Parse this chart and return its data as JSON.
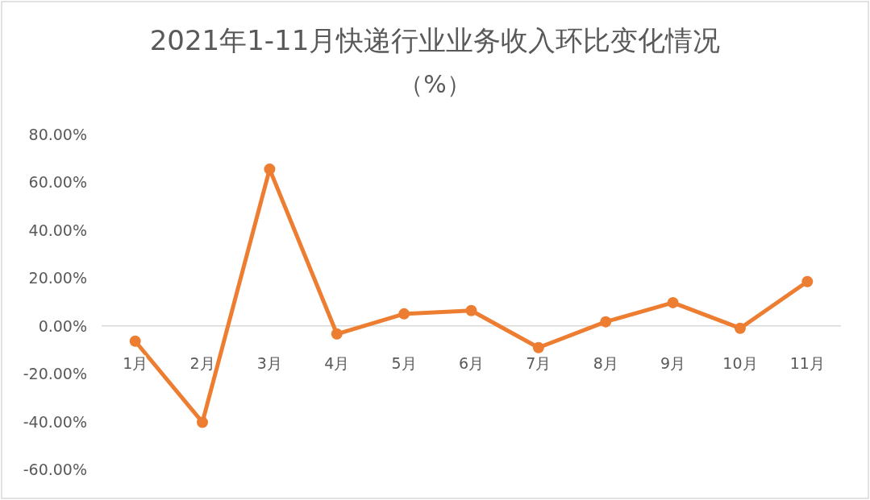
{
  "chart_data": {
    "type": "line",
    "title": "2021年1-11月快递行业业务收入环比变化情况",
    "subtitle": "（%）",
    "categories": [
      "1月",
      "2月",
      "3月",
      "4月",
      "5月",
      "6月",
      "7月",
      "8月",
      "9月",
      "10月",
      "11月"
    ],
    "series": [
      {
        "color": "#ed7d31",
        "values": [
          -6.4,
          -40.3,
          65.5,
          -3.4,
          5.0,
          6.4,
          -9.1,
          1.7,
          9.7,
          -1.0,
          18.5
        ]
      }
    ],
    "ylim": [
      -60,
      80
    ],
    "yticks": [
      {
        "value": -60,
        "label": "-60.00%"
      },
      {
        "value": -40,
        "label": "-40.00%"
      },
      {
        "value": -20,
        "label": "-20.00%"
      },
      {
        "value": 0,
        "label": "0.00%"
      },
      {
        "value": 20,
        "label": "20.00%"
      },
      {
        "value": 40,
        "label": "40.00%"
      },
      {
        "value": 60,
        "label": "60.00%"
      },
      {
        "value": 80,
        "label": "80.00%"
      }
    ],
    "grid": false,
    "marker": "circle",
    "line_style": "solid"
  }
}
